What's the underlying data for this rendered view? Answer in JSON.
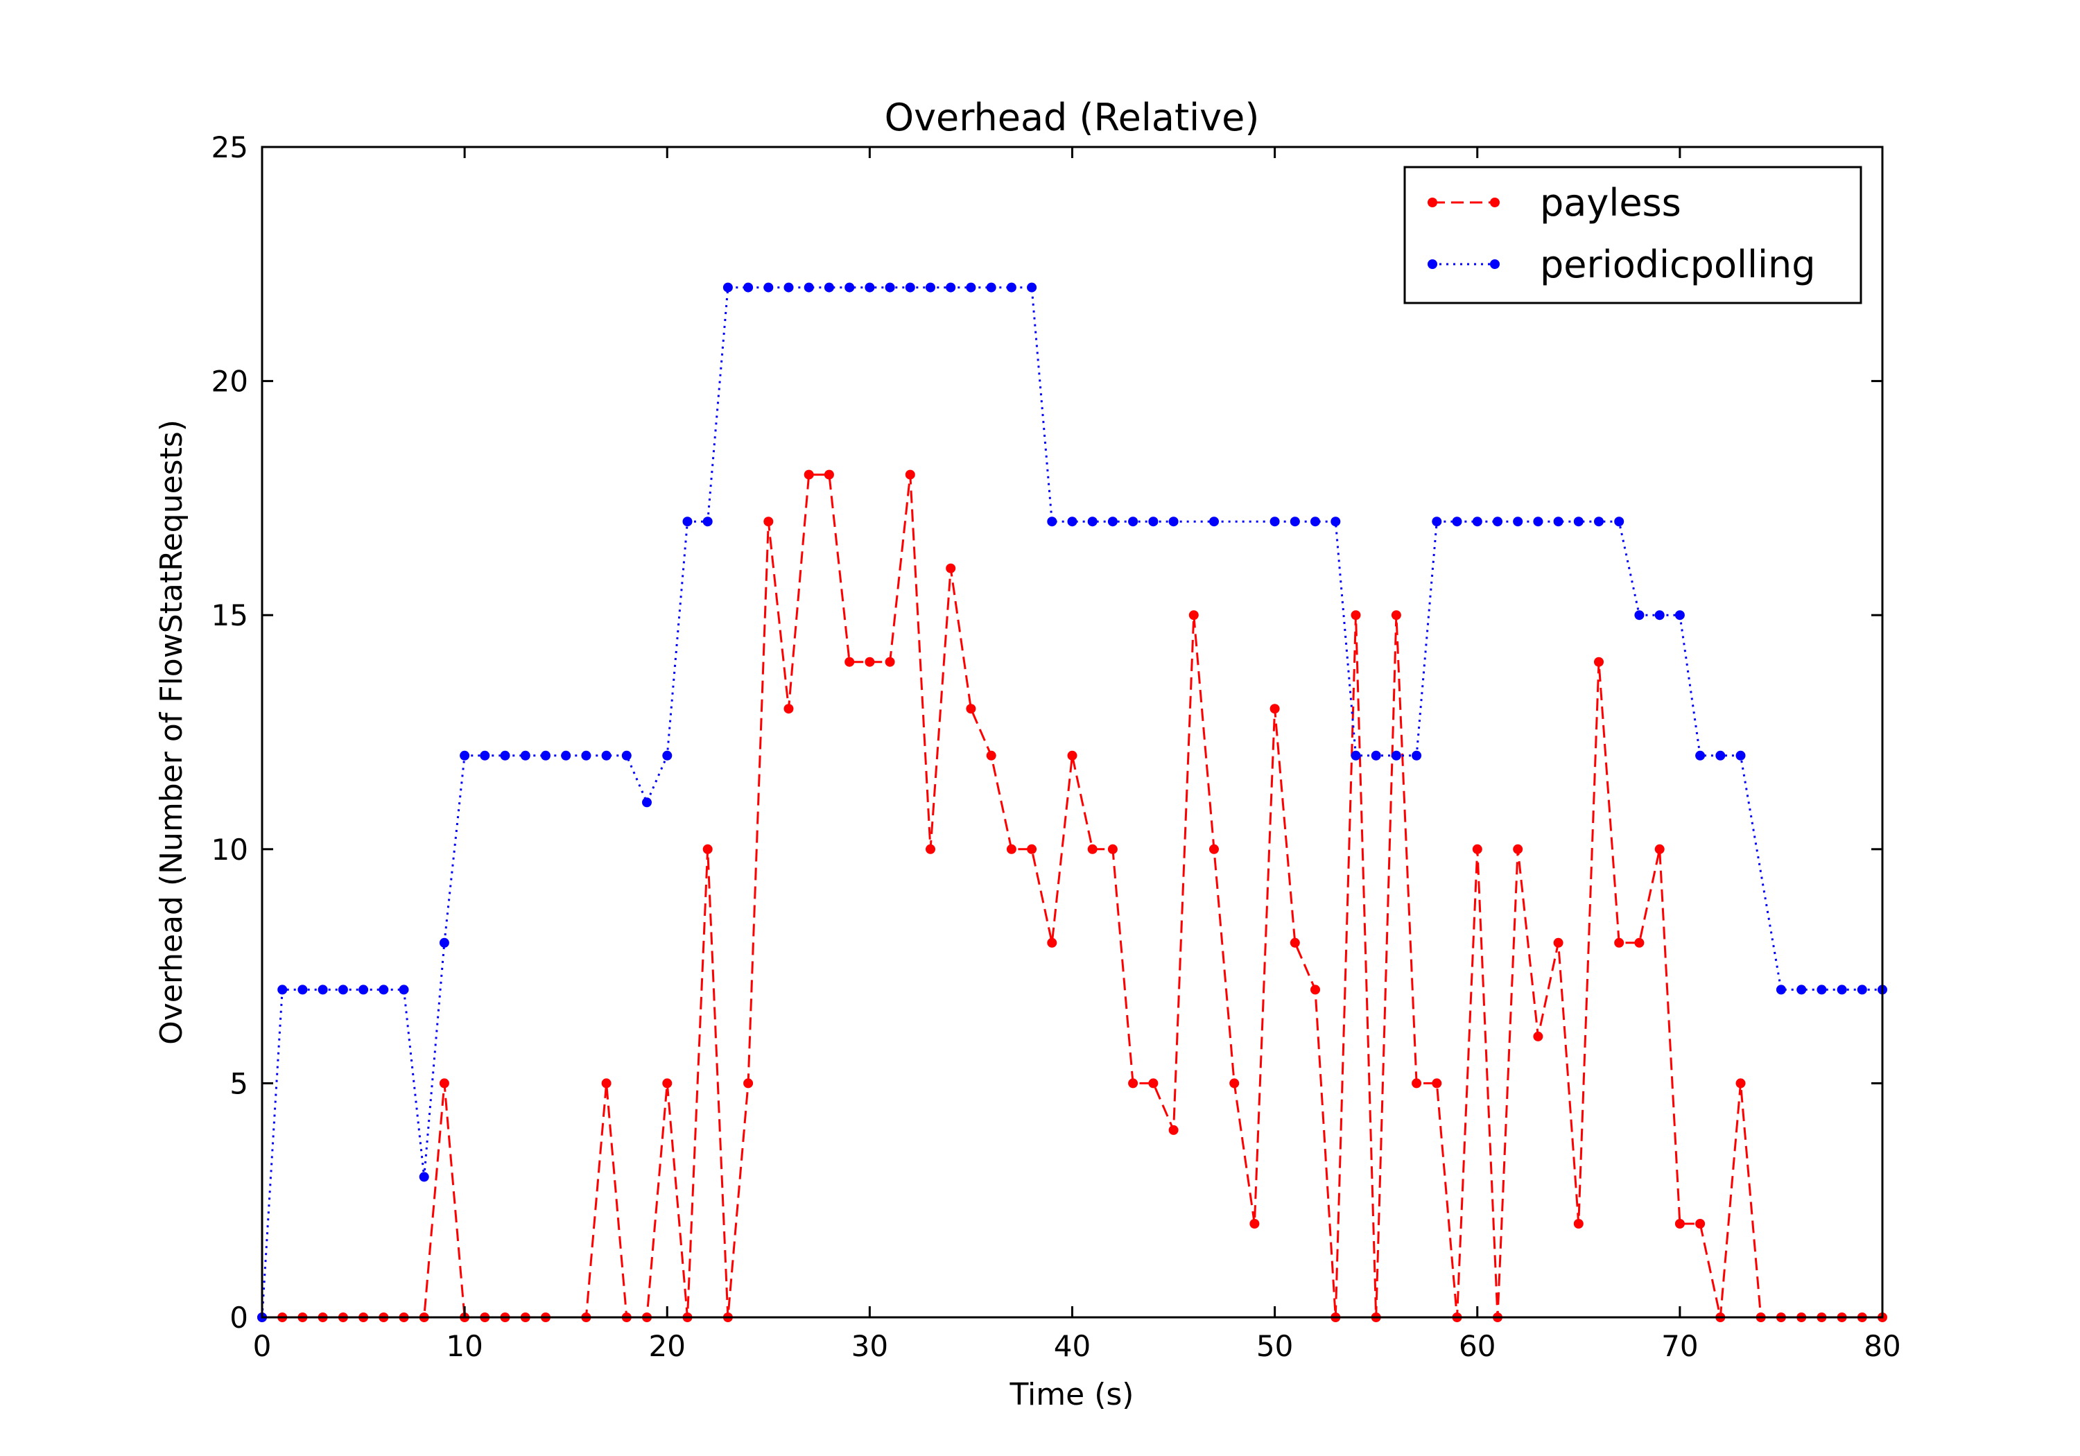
{
  "chart_data": {
    "type": "line",
    "title": "Overhead (Relative)",
    "xlabel": "Time (s)",
    "ylabel": "Overhead (Number of FlowStatRequests)",
    "xlim": [
      0,
      80
    ],
    "ylim": [
      0,
      25
    ],
    "x_ticks": [
      0,
      10,
      20,
      30,
      40,
      50,
      60,
      70,
      80
    ],
    "y_ticks": [
      0,
      5,
      10,
      15,
      20,
      25
    ],
    "x_tick_labels": [
      "0",
      "10",
      "20",
      "30",
      "40",
      "50",
      "60",
      "70",
      "80"
    ],
    "y_tick_labels": [
      "0",
      "5",
      "10",
      "15",
      "20",
      "25"
    ],
    "grid": false,
    "legend_position": "top-right",
    "series": [
      {
        "name": "payless",
        "color": "#ff0000",
        "line_style": "dashed",
        "marker": "dot",
        "x": [
          0,
          1,
          2,
          3,
          4,
          5,
          6,
          7,
          8,
          9,
          10,
          11,
          12,
          13,
          14,
          16,
          17,
          18,
          19,
          20,
          21,
          22,
          23,
          24,
          25,
          26,
          27,
          28,
          29,
          30,
          31,
          32,
          33,
          34,
          35,
          36,
          37,
          38,
          39,
          40,
          41,
          42,
          43,
          44,
          45,
          46,
          47,
          48,
          49,
          50,
          51,
          52,
          53,
          54,
          55,
          56,
          57,
          58,
          59,
          60,
          61,
          62,
          63,
          64,
          65,
          66,
          67,
          68,
          69,
          70,
          71,
          72,
          73,
          74,
          75,
          76,
          77,
          78,
          79,
          80
        ],
        "y": [
          0,
          0,
          0,
          0,
          0,
          0,
          0,
          0,
          0,
          5,
          0,
          0,
          0,
          0,
          0,
          0,
          5,
          0,
          0,
          5,
          0,
          10,
          0,
          5,
          17,
          13,
          18,
          18,
          14,
          14,
          14,
          18,
          10,
          16,
          13,
          12,
          10,
          10,
          8,
          12,
          10,
          10,
          5,
          5,
          4,
          15,
          10,
          5,
          2,
          13,
          8,
          7,
          0,
          15,
          0,
          15,
          5,
          5,
          0,
          10,
          0,
          10,
          6,
          8,
          2,
          14,
          8,
          8,
          10,
          2,
          2,
          0,
          5,
          0,
          0,
          0,
          0,
          0,
          0,
          0
        ]
      },
      {
        "name": "periodicpolling",
        "color": "#0000ff",
        "line_style": "dotted",
        "marker": "dot",
        "x": [
          0,
          1,
          2,
          3,
          4,
          5,
          6,
          7,
          8,
          9,
          10,
          11,
          12,
          13,
          14,
          15,
          16,
          17,
          18,
          19,
          20,
          21,
          22,
          23,
          24,
          25,
          26,
          27,
          28,
          29,
          30,
          31,
          32,
          33,
          34,
          35,
          36,
          37,
          38,
          39,
          40,
          41,
          42,
          43,
          44,
          45,
          47,
          50,
          51,
          52,
          53,
          54,
          55,
          56,
          57,
          58,
          59,
          60,
          61,
          62,
          63,
          64,
          65,
          66,
          67,
          68,
          69,
          70,
          71,
          72,
          73,
          75,
          76,
          77,
          78,
          79,
          80
        ],
        "y": [
          0,
          7,
          7,
          7,
          7,
          7,
          7,
          7,
          3,
          8,
          12,
          12,
          12,
          12,
          12,
          12,
          12,
          12,
          12,
          11,
          12,
          17,
          17,
          22,
          22,
          22,
          22,
          22,
          22,
          22,
          22,
          22,
          22,
          22,
          22,
          22,
          22,
          22,
          22,
          17,
          17,
          17,
          17,
          17,
          17,
          17,
          17,
          17,
          17,
          17,
          17,
          12,
          12,
          12,
          12,
          17,
          17,
          17,
          17,
          17,
          17,
          17,
          17,
          17,
          17,
          15,
          15,
          15,
          12,
          12,
          12,
          7,
          7,
          7,
          7,
          7,
          7
        ]
      }
    ]
  }
}
